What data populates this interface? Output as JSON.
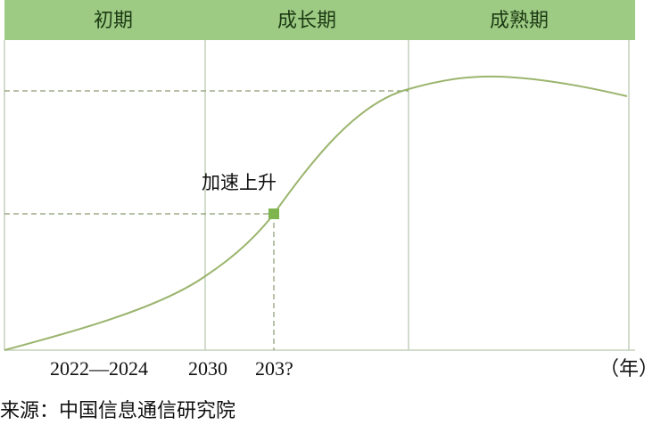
{
  "phases": [
    "初期",
    "成长期",
    "成熟期"
  ],
  "annotation": "加速上升",
  "x_labels": [
    "2022—2024",
    "2030",
    "203?"
  ],
  "x_unit": "（年）",
  "source": "来源：中国信息通信研究院",
  "colors": {
    "header": "#9dcb84",
    "curve": "#9bb56e",
    "marker": "#7fb54f",
    "grid": "#b5c9a8",
    "dashed": "#8a9a70"
  }
}
